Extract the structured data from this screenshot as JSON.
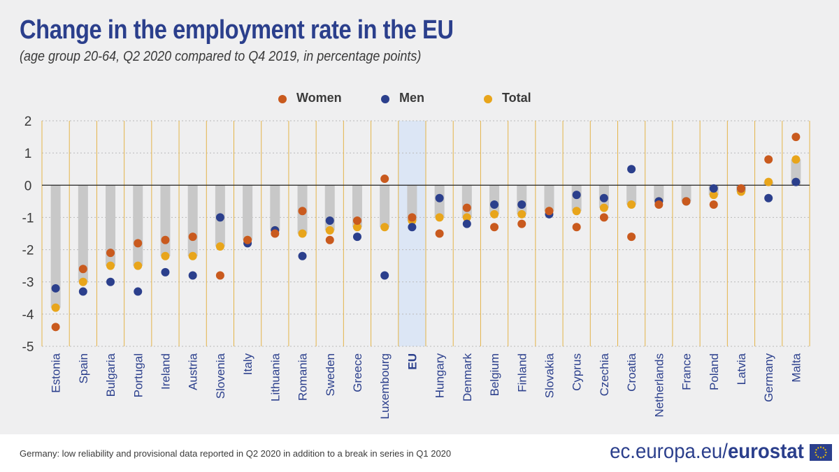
{
  "title": "Change in the employment rate in the EU",
  "subtitle": "(age group 20-64, Q2 2020 compared to Q4 2019, in percentage points)",
  "footnote": "Germany: low reliability and provisional data reported in Q2 2020 in addition to a break in series in Q1 2020",
  "brand": {
    "prefix": "ec.europa.eu/",
    "name": "eurostat"
  },
  "colors": {
    "women": "#c95a1e",
    "men": "#2b3f8c",
    "total": "#e8a51b",
    "bar": "#c8c8c8",
    "eu_band": "#dce6f5",
    "divider": "#e4b449"
  },
  "chart_data": {
    "type": "scatter",
    "categories": [
      "Estonia",
      "Spain",
      "Bulgaria",
      "Portugal",
      "Ireland",
      "Austria",
      "Slovenia",
      "Italy",
      "Lithuania",
      "Romania",
      "Sweden",
      "Greece",
      "Luxembourg",
      "EU",
      "Hungary",
      "Denmark",
      "Belgium",
      "Finland",
      "Slovakia",
      "Cyprus",
      "Czechia",
      "Croatia",
      "Netherlands",
      "France",
      "Poland",
      "Latvia",
      "Germany",
      "Malta"
    ],
    "highlight": "EU",
    "series": [
      {
        "name": "Women",
        "color": "#c95a1e",
        "values": [
          -4.4,
          -2.6,
          -2.1,
          -1.8,
          -1.7,
          -1.6,
          -2.8,
          -1.7,
          -1.5,
          -0.8,
          -1.7,
          -1.1,
          0.2,
          -1.0,
          -1.5,
          -0.7,
          -1.3,
          -1.2,
          -0.8,
          -1.3,
          -1.0,
          -1.6,
          -0.6,
          -0.5,
          -0.6,
          -0.1,
          0.8,
          1.5
        ]
      },
      {
        "name": "Men",
        "color": "#2b3f8c",
        "values": [
          -3.2,
          -3.3,
          -3.0,
          -3.3,
          -2.7,
          -2.8,
          -1.0,
          -1.8,
          -1.4,
          -2.2,
          -1.1,
          -1.6,
          -2.8,
          -1.3,
          -0.4,
          -1.2,
          -0.6,
          -0.6,
          -0.9,
          -0.3,
          -0.4,
          0.5,
          -0.5,
          -0.5,
          -0.1,
          -0.1,
          -0.4,
          0.1
        ]
      },
      {
        "name": "Total",
        "color": "#e8a51b",
        "values": [
          -3.8,
          -3.0,
          -2.5,
          -2.5,
          -2.2,
          -2.2,
          -1.9,
          -1.7,
          -1.4,
          -1.5,
          -1.4,
          -1.3,
          -1.3,
          -1.1,
          -1.0,
          -1.0,
          -0.9,
          -0.9,
          -0.8,
          -0.8,
          -0.7,
          -0.6,
          -0.5,
          -0.5,
          -0.3,
          -0.2,
          0.1,
          0.8
        ]
      }
    ],
    "ylim": [
      -5,
      2
    ],
    "yticks": [
      2,
      1,
      0,
      -1,
      -2,
      -3,
      -4,
      -5
    ],
    "legend_position": "top",
    "grid": true
  }
}
